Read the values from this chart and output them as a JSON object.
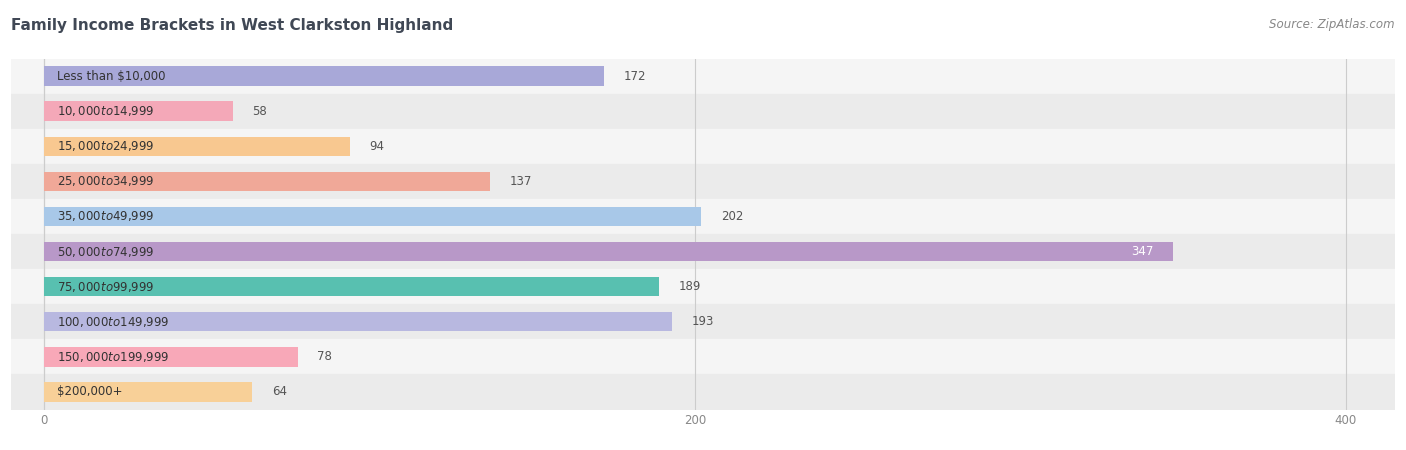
{
  "title": "Family Income Brackets in West Clarkston Highland",
  "source": "Source: ZipAtlas.com",
  "categories": [
    "Less than $10,000",
    "$10,000 to $14,999",
    "$15,000 to $24,999",
    "$25,000 to $34,999",
    "$35,000 to $49,999",
    "$50,000 to $74,999",
    "$75,000 to $99,999",
    "$100,000 to $149,999",
    "$150,000 to $199,999",
    "$200,000+"
  ],
  "values": [
    172,
    58,
    94,
    137,
    202,
    347,
    189,
    193,
    78,
    64
  ],
  "bar_colors": [
    "#a8a8d8",
    "#f4a8b8",
    "#f8c890",
    "#f0a898",
    "#a8c8e8",
    "#b898c8",
    "#58c0b0",
    "#b8b8e0",
    "#f8a8b8",
    "#f8d098"
  ],
  "row_bg_colors": [
    "#f5f5f5",
    "#ebebeb"
  ],
  "xlim_min": -10,
  "xlim_max": 415,
  "xticks": [
    0,
    200,
    400
  ],
  "title_fontsize": 11,
  "source_fontsize": 8.5,
  "label_fontsize": 8.5,
  "value_fontsize": 8.5,
  "title_color": "#404855",
  "source_color": "#888888",
  "label_color": "#333333",
  "value_color_inside": "#ffffff",
  "value_color_outside": "#555555",
  "grid_color": "#cccccc",
  "tick_color": "#888888",
  "background_color": "#ffffff",
  "bar_height": 0.55,
  "value_threshold": 320
}
